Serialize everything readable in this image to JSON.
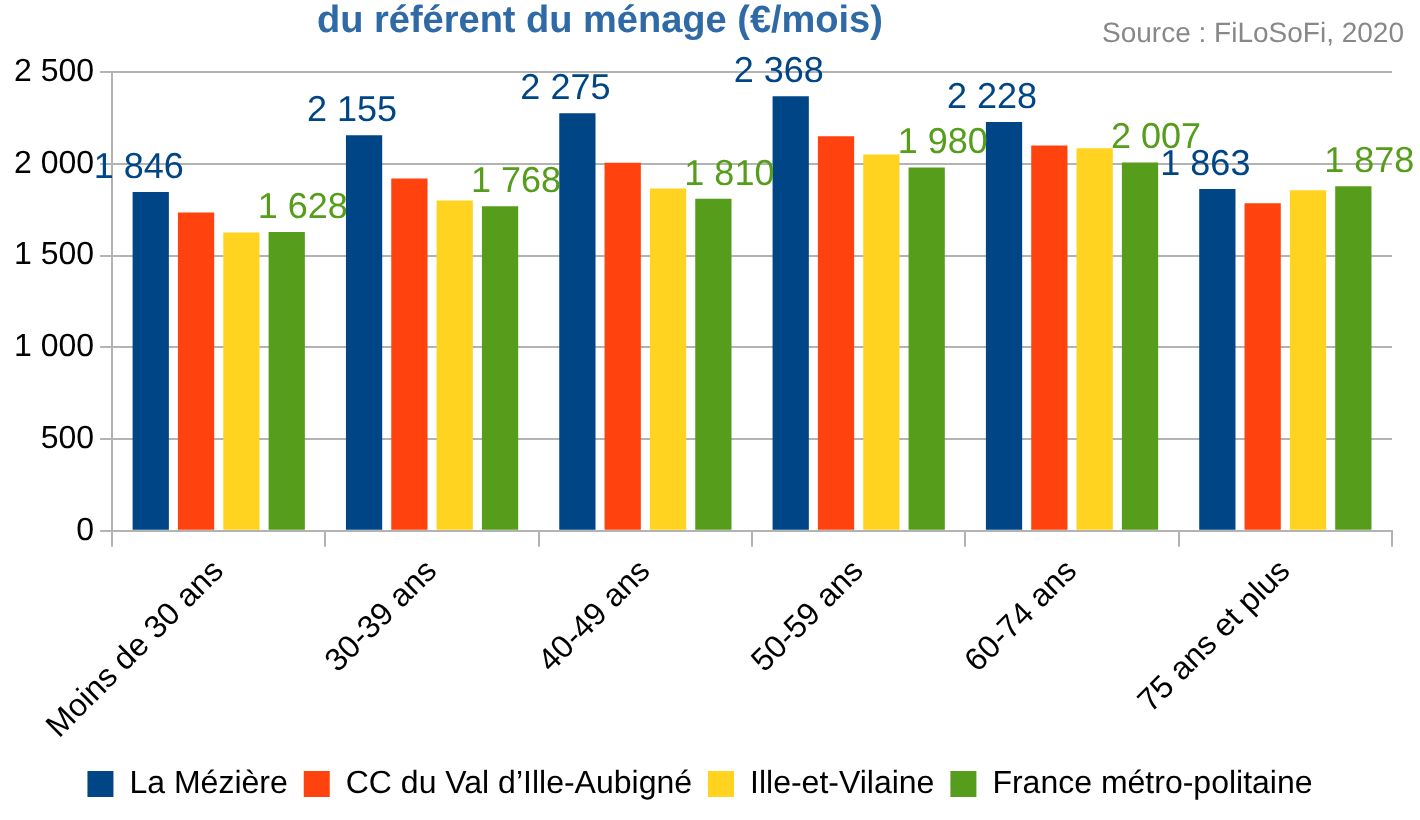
{
  "chart_data": {
    "type": "bar",
    "title": "du référent du ménage (€/mois)",
    "annotations": [
      "Source : FiLoSoFi, 2020"
    ],
    "categories": [
      "Moins de 30 ans",
      "30-39 ans",
      "40-49 ans",
      "50-59 ans",
      "60-74 ans",
      "75 ans et plus"
    ],
    "series": [
      {
        "name": "La Mézière",
        "color": "#004586",
        "values": [
          1846,
          2155,
          2275,
          2368,
          2228,
          1863
        ],
        "value_labels": [
          "1 846",
          "2 155",
          "2 275",
          "2 368",
          "2 228",
          "1 863"
        ]
      },
      {
        "name": "CC du Val d’Ille-Aubigné",
        "color": "#ff420e",
        "values": [
          1735,
          1920,
          2005,
          2150,
          2100,
          1785
        ]
      },
      {
        "name": "Ille-et-Vilaine",
        "color": "#ffd320",
        "values": [
          1625,
          1800,
          1865,
          2050,
          2085,
          1855
        ]
      },
      {
        "name": "France métro-politaine",
        "color": "#579d1c",
        "values": [
          1628,
          1768,
          1810,
          1980,
          2007,
          1878
        ],
        "value_labels": [
          "1 628",
          "1 768",
          "1 810",
          "1 980",
          "2 007",
          "1 878"
        ]
      }
    ],
    "ylim": [
      0,
      2500
    ],
    "yticks": [
      0,
      500,
      {
        "value": 1000,
        "label": "1 000"
      },
      {
        "value": 1500,
        "label": "1 500"
      },
      {
        "value": 2000,
        "label": "2 000"
      },
      {
        "value": 2500,
        "label": "2 500"
      }
    ],
    "grid": "y",
    "legend": "bottom"
  }
}
